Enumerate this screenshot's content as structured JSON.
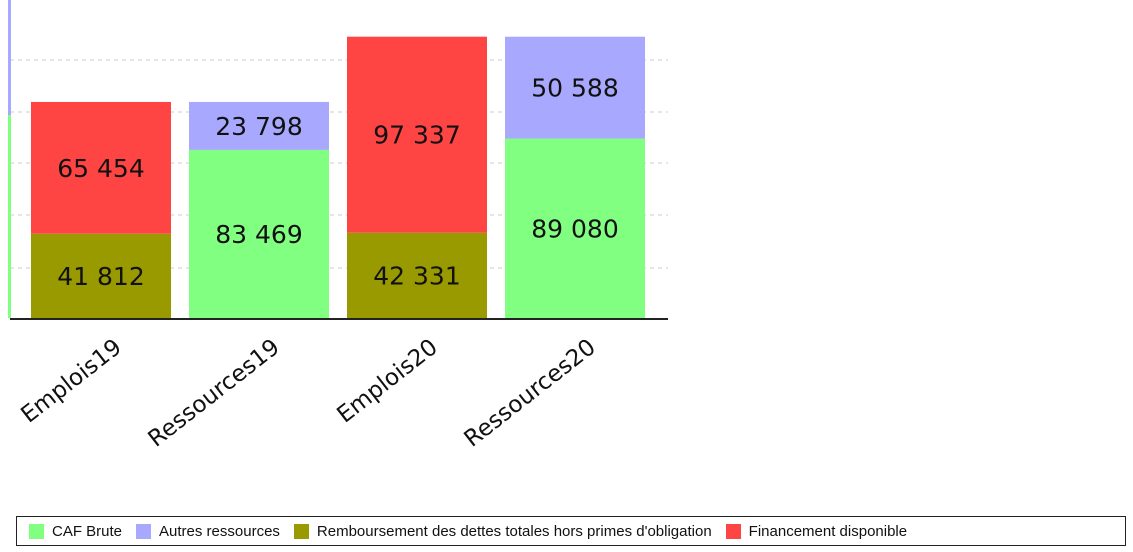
{
  "chart_data": {
    "type": "bar",
    "stacked": true,
    "categories": [
      "Emplois19",
      "Ressources19",
      "Emplois20",
      "Ressources20"
    ],
    "series": [
      {
        "name": "CAF Brute",
        "color": "#80ff80",
        "values": [
          null,
          83469,
          null,
          89080
        ]
      },
      {
        "name": "Autres ressources",
        "color": "#a8a8ff",
        "values": [
          null,
          23798,
          null,
          50588
        ]
      },
      {
        "name": "Remboursement des dettes totales hors primes d'obligation",
        "color": "#999900",
        "values": [
          41812,
          null,
          42331,
          null
        ]
      },
      {
        "name": "Financement disponible",
        "color": "#ff4444",
        "values": [
          65454,
          null,
          97337,
          null
        ]
      }
    ],
    "value_labels": [
      [
        "",
        "83 469",
        "",
        "89 080"
      ],
      [
        "",
        "23 798",
        "",
        "50 588"
      ],
      [
        "41 812",
        "",
        "42 331",
        ""
      ],
      [
        "65 454",
        "",
        "97 337",
        ""
      ]
    ],
    "ylim": [
      0,
      143000
    ],
    "grid": true,
    "legend_position": "bottom"
  }
}
